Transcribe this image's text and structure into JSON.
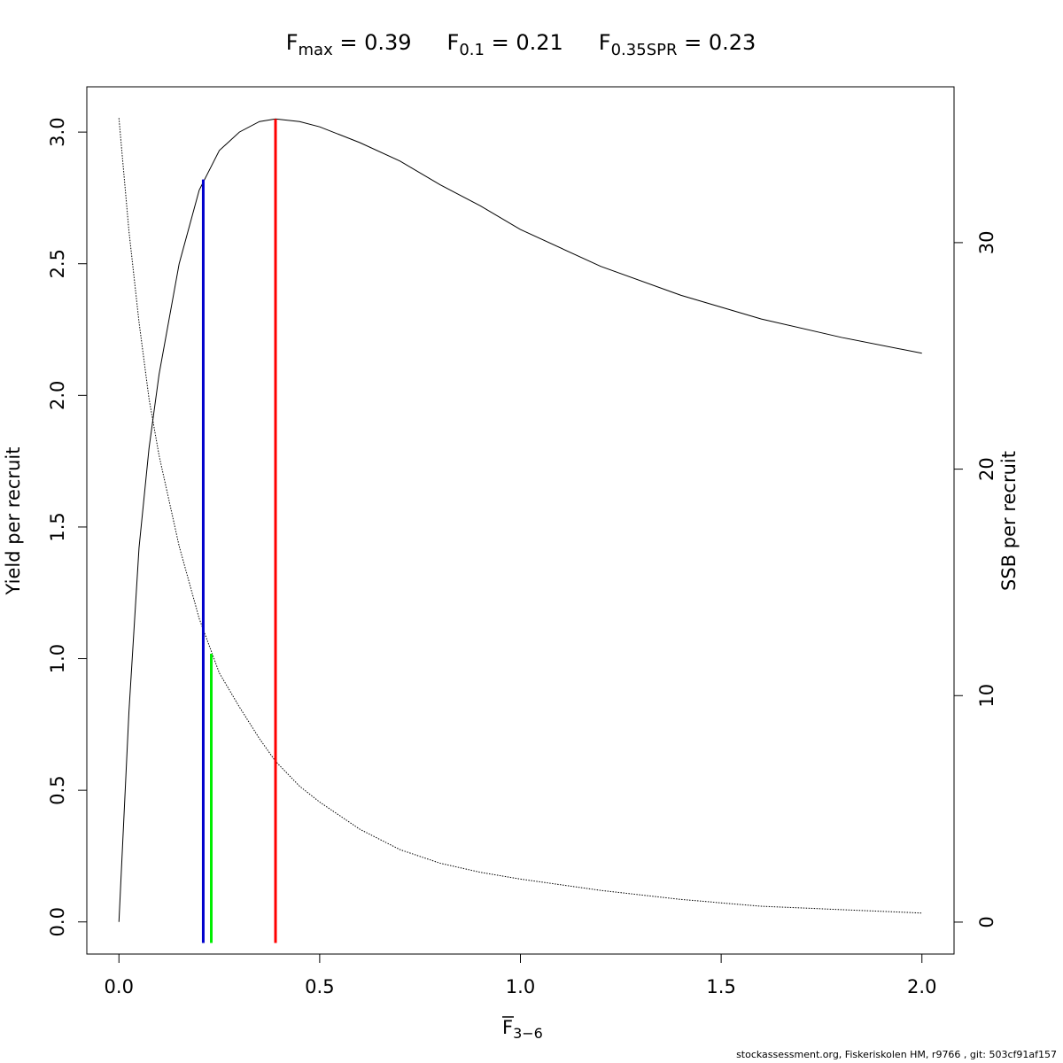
{
  "chart_data": {
    "type": "line",
    "title": [
      {
        "base": "F",
        "sub": "max",
        "rest": " = 0.39"
      },
      {
        "base": "F",
        "sub": "0.1",
        "rest": " = 0.21"
      },
      {
        "base": "F",
        "sub": "0.35SPR",
        "rest": " = 0.23"
      }
    ],
    "xlabel": {
      "base": "F",
      "sub": "3−6"
    },
    "ylabel": "Yield per recruit",
    "y2label": "SSB per recruit",
    "footnote": "stockassessment.org, Fiskeriskolen HM, r9766 , git: 503cf91af157",
    "x": [
      0,
      0.025,
      0.05,
      0.075,
      0.1,
      0.15,
      0.2,
      0.25,
      0.3,
      0.35,
      0.39,
      0.45,
      0.5,
      0.6,
      0.7,
      0.8,
      0.9,
      1.0,
      1.2,
      1.4,
      1.6,
      1.8,
      2.0
    ],
    "series": [
      {
        "name": "Yield per recruit",
        "color": "#000000",
        "linestyle": "solid",
        "axis": "y",
        "values": [
          0,
          0.8,
          1.42,
          1.8,
          2.08,
          2.5,
          2.78,
          2.93,
          3.0,
          3.04,
          3.05,
          3.04,
          3.02,
          2.96,
          2.89,
          2.8,
          2.72,
          2.63,
          2.49,
          2.38,
          2.29,
          2.22,
          2.16
        ]
      },
      {
        "name": "SSB per recruit",
        "color": "#000000",
        "linestyle": "dotted",
        "axis": "y2",
        "values": [
          35.5,
          30.5,
          26.5,
          23.1,
          20.6,
          16.6,
          13.4,
          11.0,
          9.5,
          8.1,
          7.1,
          6.0,
          5.3,
          4.1,
          3.2,
          2.6,
          2.2,
          1.9,
          1.4,
          1.0,
          0.7,
          0.55,
          0.4
        ]
      }
    ],
    "reference_lines": [
      {
        "x": 0.21,
        "from": -0.08,
        "to": 2.82,
        "axis": "y",
        "color": "#0000cc"
      },
      {
        "x": 0.23,
        "from": -0.08,
        "to": 11.85,
        "axis": "y2",
        "color": "#00ee00"
      },
      {
        "x": 0.39,
        "from": -0.08,
        "to": 3.05,
        "axis": "y",
        "color": "#ff0000"
      }
    ],
    "xlim": [
      -0.08,
      2.08
    ],
    "xticks": [
      {
        "value": 0,
        "label": "0.0"
      },
      {
        "value": 0.5,
        "label": "0.5"
      },
      {
        "value": 1,
        "label": "1.0"
      },
      {
        "value": 1.5,
        "label": "1.5"
      },
      {
        "value": 2,
        "label": "2.0"
      }
    ],
    "ylim": [
      -0.122,
      3.172
    ],
    "yticks": [
      {
        "value": 0,
        "label": "0.0"
      },
      {
        "value": 0.5,
        "label": "0.5"
      },
      {
        "value": 1,
        "label": "1.0"
      },
      {
        "value": 1.5,
        "label": "1.5"
      },
      {
        "value": 2,
        "label": "2.0"
      },
      {
        "value": 2.5,
        "label": "2.5"
      },
      {
        "value": 3,
        "label": "3.0"
      }
    ],
    "y2lim": [
      -1.41,
      36.88
    ],
    "y2ticks": [
      0,
      10,
      20,
      30
    ]
  }
}
